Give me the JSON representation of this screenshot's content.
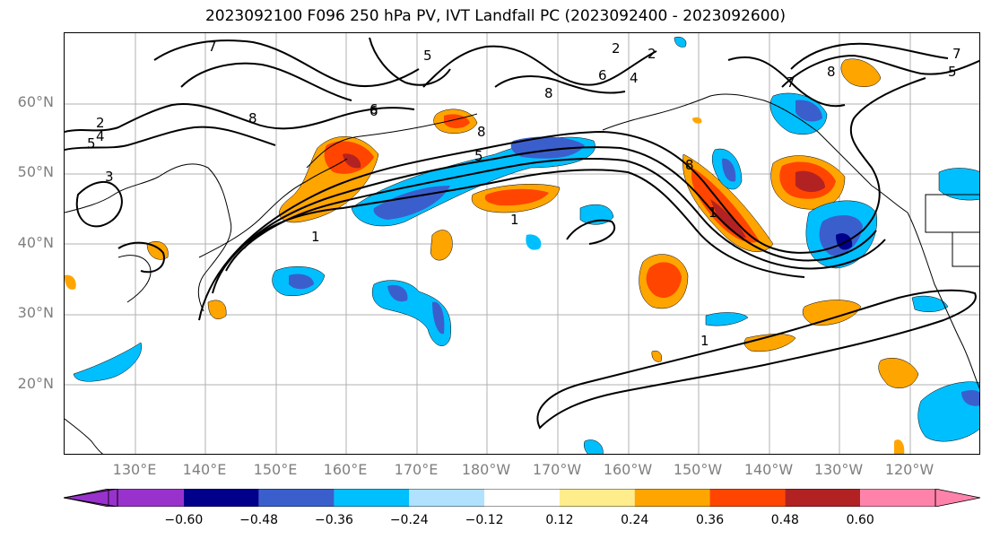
{
  "title": "2023092100 F096 250 hPa PV, IVT Landfall PC (2023092400 - 2023092600)",
  "lat_labels": [
    "60°N",
    "50°N",
    "40°N",
    "30°N",
    "20°N"
  ],
  "lon_labels": [
    "130°E",
    "140°E",
    "150°E",
    "160°E",
    "170°E",
    "180°W",
    "170°W",
    "160°W",
    "150°W",
    "140°W",
    "130°W",
    "120°W"
  ],
  "colorbar": {
    "ticks": [
      "−0.60",
      "−0.48",
      "−0.36",
      "−0.24",
      "−0.12",
      "0.12",
      "0.24",
      "0.36",
      "0.48",
      "0.60"
    ],
    "colors": [
      "#9932cc",
      "#00008b",
      "#3a5fcd",
      "#00bfff",
      "#b0e2ff",
      "#ffffff",
      "#ffec8b",
      "#ffa500",
      "#ff4500",
      "#b22222",
      "#ff82ab"
    ]
  },
  "contour_labels": [
    "7",
    "5",
    "2",
    "4",
    "5",
    "3",
    "8",
    "5",
    "6",
    "8",
    "2",
    "2",
    "4",
    "8",
    "7",
    "8",
    "6",
    "5",
    "7",
    "8",
    "1",
    "1",
    "1",
    "1",
    "6"
  ]
}
